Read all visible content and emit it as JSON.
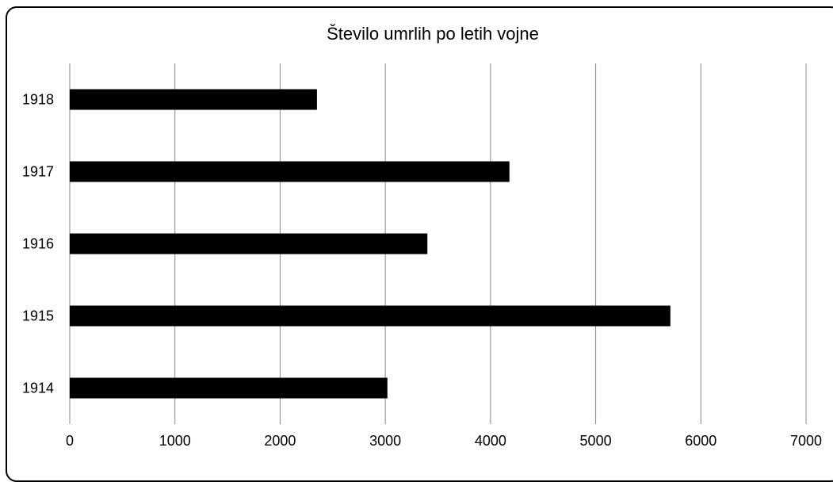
{
  "chart_data": {
    "type": "bar",
    "orientation": "horizontal",
    "title": "Število umrlih po letih vojne",
    "categories": [
      "1914",
      "1915",
      "1916",
      "1917",
      "1918"
    ],
    "values": [
      3020,
      5710,
      3400,
      4180,
      2350
    ],
    "xlim": [
      0,
      7000
    ],
    "xticks": [
      "0",
      "1000",
      "2000",
      "3000",
      "4000",
      "5000",
      "6000",
      "7000"
    ],
    "xlabel": "",
    "ylabel": "",
    "grid": "vertical",
    "legend": "none",
    "bar_color": "#000000",
    "grid_color": "#888888"
  }
}
